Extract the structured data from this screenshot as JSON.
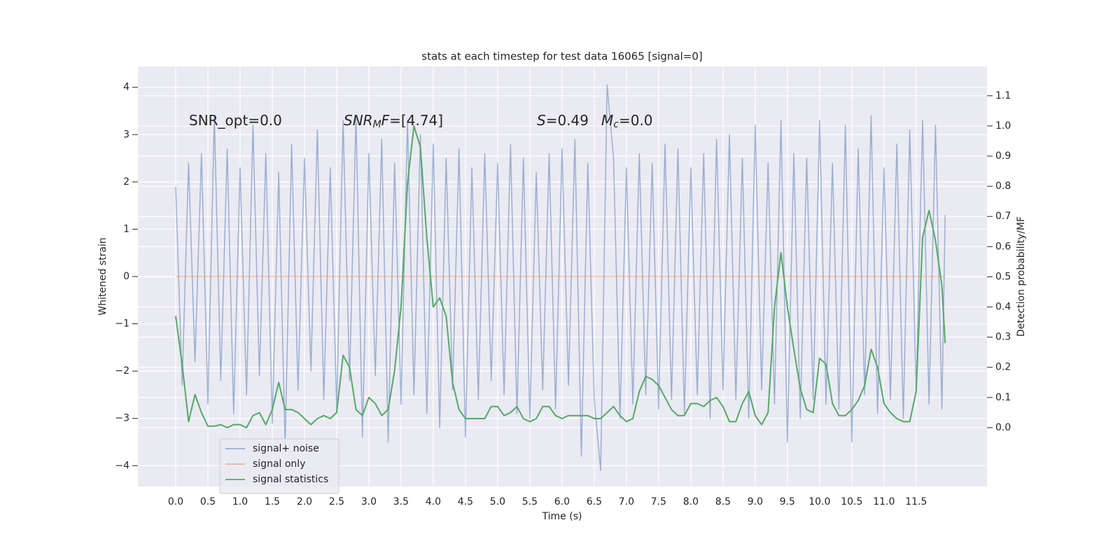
{
  "chart_data": {
    "type": "line",
    "title": "stats at each timestep for test data 16065 [signal=0]",
    "xlabel": "Time (s)",
    "ylabel": "Whitened strain",
    "y2label": "Detection probability/MF",
    "annotations": [
      [
        {
          "text": "SNR_opt=0.0"
        }
      ],
      [
        {
          "text": "SNR",
          "italic": true
        },
        {
          "text": "M",
          "italic": true,
          "sub": true
        },
        {
          "text": "F",
          "italic": true
        },
        {
          "text": "=[4.74]"
        }
      ],
      [
        {
          "text": "S",
          "italic": true
        },
        {
          "text": "=0.49"
        }
      ],
      [
        {
          "text": "M",
          "italic": true
        },
        {
          "text": "c",
          "italic": true,
          "sub": true
        },
        {
          "text": "=0.0"
        }
      ]
    ],
    "x": [
      0,
      0.1,
      0.2,
      0.3,
      0.4,
      0.5,
      0.6,
      0.7,
      0.8,
      0.9,
      1,
      1.1,
      1.2,
      1.3,
      1.4,
      1.5,
      1.6,
      1.7,
      1.8,
      1.9,
      2,
      2.1,
      2.2,
      2.3,
      2.4,
      2.5,
      2.6,
      2.7,
      2.8,
      2.9,
      3,
      3.1,
      3.2,
      3.3,
      3.4,
      3.5,
      3.6,
      3.7,
      3.8,
      3.9,
      4,
      4.1,
      4.2,
      4.3,
      4.4,
      4.5,
      4.6,
      4.7,
      4.8,
      4.9,
      5,
      5.1,
      5.2,
      5.3,
      5.4,
      5.5,
      5.6,
      5.7,
      5.8,
      5.9,
      6,
      6.1,
      6.2,
      6.3,
      6.4,
      6.5,
      6.6,
      6.7,
      6.8,
      6.9,
      7,
      7.1,
      7.2,
      7.3,
      7.4,
      7.5,
      7.6,
      7.7,
      7.8,
      7.9,
      8,
      8.1,
      8.2,
      8.3,
      8.4,
      8.5,
      8.6,
      8.7,
      8.8,
      8.9,
      9,
      9.1,
      9.2,
      9.3,
      9.4,
      9.5,
      9.6,
      9.7,
      9.8,
      9.9,
      10,
      10.1,
      10.2,
      10.3,
      10.4,
      10.5,
      10.6,
      10.7,
      10.8,
      10.9,
      11,
      11.1,
      11.2,
      11.3,
      11.4,
      11.5,
      11.6,
      11.7,
      11.8,
      11.9,
      11.95
    ],
    "series": [
      {
        "name": "signal+ noise",
        "color": "#4c72b0",
        "opacity": 0.5,
        "values": [
          1.9,
          -2.3,
          2.4,
          -1.8,
          2.6,
          -2.7,
          3.4,
          -2.2,
          2.7,
          -2.9,
          2.3,
          -2.5,
          3.2,
          -2.1,
          2.6,
          -3.1,
          2.2,
          -3.6,
          2.8,
          -2.4,
          2.5,
          -2.0,
          3.1,
          -2.6,
          2.3,
          -2.8,
          3.3,
          -2.2,
          3.4,
          -3.4,
          2.6,
          -2.1,
          2.9,
          -3.5,
          2.4,
          -2.7,
          3.3,
          -2.5,
          3.0,
          -2.9,
          2.8,
          -3.2,
          2.5,
          -2.4,
          2.7,
          -3.4,
          2.3,
          -2.6,
          2.6,
          -2.2,
          2.4,
          -2.5,
          2.8,
          -2.9,
          2.5,
          -3.0,
          2.2,
          -2.4,
          2.6,
          -2.8,
          2.7,
          -2.3,
          2.9,
          -3.8,
          2.4,
          -2.6,
          -4.1,
          4.05,
          2.5,
          -3.0,
          2.3,
          -2.7,
          2.6,
          -2.5,
          2.4,
          -2.8,
          2.8,
          -2.6,
          2.7,
          -2.9,
          2.3,
          -2.5,
          2.6,
          -3.0,
          2.9,
          -2.4,
          3.0,
          -2.6,
          2.5,
          -3.0,
          3.2,
          -2.4,
          2.4,
          -2.7,
          3.3,
          -3.5,
          2.6,
          -3.0,
          2.5,
          -2.6,
          3.3,
          -2.7,
          2.4,
          -2.8,
          3.2,
          -3.5,
          2.7,
          -2.5,
          3.4,
          -2.9,
          2.3,
          -2.6,
          2.8,
          -3.0,
          3.1,
          -2.4,
          3.3,
          -2.7,
          3.2,
          -2.8,
          1.3
        ]
      },
      {
        "name": "signal only",
        "color": "#dd8452",
        "opacity": 0.5,
        "x": [
          0,
          11.95
        ],
        "values": [
          0,
          0
        ]
      },
      {
        "name": "signal statistics",
        "color": "#55a868",
        "opacity": 1,
        "axis": "y2",
        "values": [
          0.37,
          0.21,
          0.02,
          0.11,
          0.05,
          0.005,
          0.005,
          0.01,
          0.0,
          0.01,
          0.01,
          0.0,
          0.04,
          0.05,
          0.01,
          0.06,
          0.15,
          0.06,
          0.06,
          0.05,
          0.03,
          0.01,
          0.03,
          0.04,
          0.03,
          0.05,
          0.24,
          0.2,
          0.06,
          0.04,
          0.1,
          0.08,
          0.04,
          0.06,
          0.19,
          0.4,
          0.81,
          1.0,
          0.93,
          0.63,
          0.4,
          0.43,
          0.37,
          0.15,
          0.06,
          0.03,
          0.03,
          0.03,
          0.03,
          0.07,
          0.07,
          0.04,
          0.05,
          0.07,
          0.03,
          0.02,
          0.03,
          0.07,
          0.07,
          0.04,
          0.03,
          0.04,
          0.04,
          0.04,
          0.04,
          0.03,
          0.03,
          0.05,
          0.07,
          0.04,
          0.02,
          0.03,
          0.12,
          0.17,
          0.16,
          0.14,
          0.1,
          0.06,
          0.04,
          0.04,
          0.08,
          0.08,
          0.07,
          0.09,
          0.1,
          0.07,
          0.02,
          0.02,
          0.08,
          0.12,
          0.04,
          0.01,
          0.05,
          0.4,
          0.58,
          0.4,
          0.26,
          0.13,
          0.06,
          0.05,
          0.23,
          0.21,
          0.08,
          0.04,
          0.04,
          0.06,
          0.09,
          0.14,
          0.26,
          0.2,
          0.08,
          0.05,
          0.03,
          0.02,
          0.02,
          0.12,
          0.63,
          0.72,
          0.62,
          0.47,
          0.28
        ]
      }
    ],
    "xlim": [
      -0.587,
      12.6
    ],
    "xticks": [
      {
        "value": 0,
        "label": "0.0"
      },
      0.5,
      {
        "value": 1,
        "label": "1.0"
      },
      1.5,
      {
        "value": 2,
        "label": "2.0"
      },
      2.5,
      {
        "value": 3,
        "label": "3.0"
      },
      3.5,
      {
        "value": 4,
        "label": "4.0"
      },
      4.5,
      {
        "value": 5,
        "label": "5.0"
      },
      5.5,
      {
        "value": 6,
        "label": "6.0"
      },
      6.5,
      {
        "value": 7,
        "label": "7.0"
      },
      7.5,
      {
        "value": 8,
        "label": "8.0"
      },
      8.5,
      {
        "value": 9,
        "label": "9.0"
      },
      9.5,
      {
        "value": 10,
        "label": "10.0"
      },
      10.5,
      {
        "value": 11,
        "label": "11.0"
      },
      11.5
    ],
    "ylim": [
      -4.44,
      4.44
    ],
    "yticks": [
      {
        "value": -4,
        "label": "−4"
      },
      {
        "value": -3,
        "label": "−3"
      },
      {
        "value": -2,
        "label": "−2"
      },
      {
        "value": -1,
        "label": "−1"
      },
      0,
      1,
      2,
      3,
      4
    ],
    "y2lim": [
      -0.195,
      1.197
    ],
    "y2ticks": [
      {
        "value": 0,
        "label": "0.0"
      },
      0.1,
      0.2,
      0.3,
      0.4,
      0.5,
      0.6,
      0.7,
      0.8,
      0.9,
      {
        "value": 1,
        "label": "1.0"
      },
      1.1
    ],
    "grid": true,
    "legend": "lower left"
  }
}
